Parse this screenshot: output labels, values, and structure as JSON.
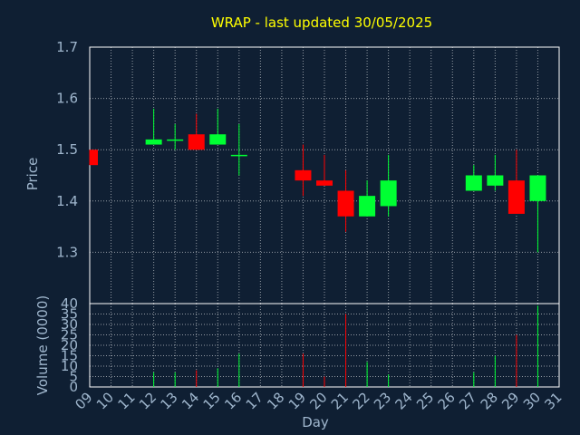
{
  "chart_data": {
    "type": "candlestick",
    "title": "WRAP - last updated 30/05/2025",
    "xlabel": "Day",
    "days": [
      "09",
      "10",
      "11",
      "12",
      "13",
      "14",
      "15",
      "16",
      "17",
      "18",
      "19",
      "20",
      "21",
      "22",
      "23",
      "24",
      "25",
      "26",
      "27",
      "28",
      "29",
      "30",
      "31"
    ],
    "price": {
      "ylabel": "Price",
      "ylim": [
        1.2,
        1.7
      ],
      "yticks": [
        "1.3",
        "1.4",
        "1.5",
        "1.6",
        "1.7"
      ],
      "grid": true,
      "candles": [
        {
          "day": "09",
          "open": 1.5,
          "high": 1.5,
          "low": 1.47,
          "close": 1.47
        },
        {
          "day": "12",
          "open": 1.51,
          "high": 1.58,
          "low": 1.51,
          "close": 1.52
        },
        {
          "day": "13",
          "open": 1.52,
          "high": 1.55,
          "low": 1.5,
          "close": 1.52
        },
        {
          "day": "14",
          "open": 1.53,
          "high": 1.57,
          "low": 1.5,
          "close": 1.5
        },
        {
          "day": "15",
          "open": 1.51,
          "high": 1.58,
          "low": 1.51,
          "close": 1.53
        },
        {
          "day": "16",
          "open": 1.49,
          "high": 1.55,
          "low": 1.45,
          "close": 1.49
        },
        {
          "day": "19",
          "open": 1.46,
          "high": 1.51,
          "low": 1.41,
          "close": 1.44
        },
        {
          "day": "20",
          "open": 1.44,
          "high": 1.49,
          "low": 1.43,
          "close": 1.43
        },
        {
          "day": "21",
          "open": 1.42,
          "high": 1.46,
          "low": 1.34,
          "close": 1.37
        },
        {
          "day": "22",
          "open": 1.37,
          "high": 1.44,
          "low": 1.37,
          "close": 1.41
        },
        {
          "day": "23",
          "open": 1.39,
          "high": 1.49,
          "low": 1.37,
          "close": 1.44
        },
        {
          "day": "27",
          "open": 1.42,
          "high": 1.47,
          "low": 1.42,
          "close": 1.45
        },
        {
          "day": "28",
          "open": 1.43,
          "high": 1.49,
          "low": 1.42,
          "close": 1.45
        },
        {
          "day": "29",
          "open": 1.44,
          "high": 1.5,
          "low": 1.375,
          "close": 1.375
        },
        {
          "day": "30",
          "open": 1.4,
          "high": 1.45,
          "low": 1.3,
          "close": 1.45
        }
      ]
    },
    "volume": {
      "ylabel": "Volume (0000)",
      "ylim": [
        0,
        40
      ],
      "yticks": [
        "0",
        "5",
        "10",
        "15",
        "20",
        "25",
        "30",
        "35",
        "40"
      ],
      "grid": true,
      "bars": [
        {
          "day": "12",
          "value": 7,
          "direction": "up"
        },
        {
          "day": "13",
          "value": 7,
          "direction": "up"
        },
        {
          "day": "14",
          "value": 8,
          "direction": "down"
        },
        {
          "day": "15",
          "value": 9,
          "direction": "up"
        },
        {
          "day": "16",
          "value": 16,
          "direction": "up"
        },
        {
          "day": "19",
          "value": 16,
          "direction": "down"
        },
        {
          "day": "20",
          "value": 5,
          "direction": "down"
        },
        {
          "day": "21",
          "value": 35,
          "direction": "down"
        },
        {
          "day": "22",
          "value": 12,
          "direction": "up"
        },
        {
          "day": "23",
          "value": 6,
          "direction": "up"
        },
        {
          "day": "27",
          "value": 7,
          "direction": "up"
        },
        {
          "day": "28",
          "value": 15,
          "direction": "up"
        },
        {
          "day": "29",
          "value": 25,
          "direction": "down"
        },
        {
          "day": "30",
          "value": 39,
          "direction": "up"
        }
      ]
    },
    "colors": {
      "up": "#00ff33",
      "down": "#ff0000",
      "background": "#0f1f33",
      "title": "#ffff00",
      "text": "#9fb6cd"
    }
  }
}
